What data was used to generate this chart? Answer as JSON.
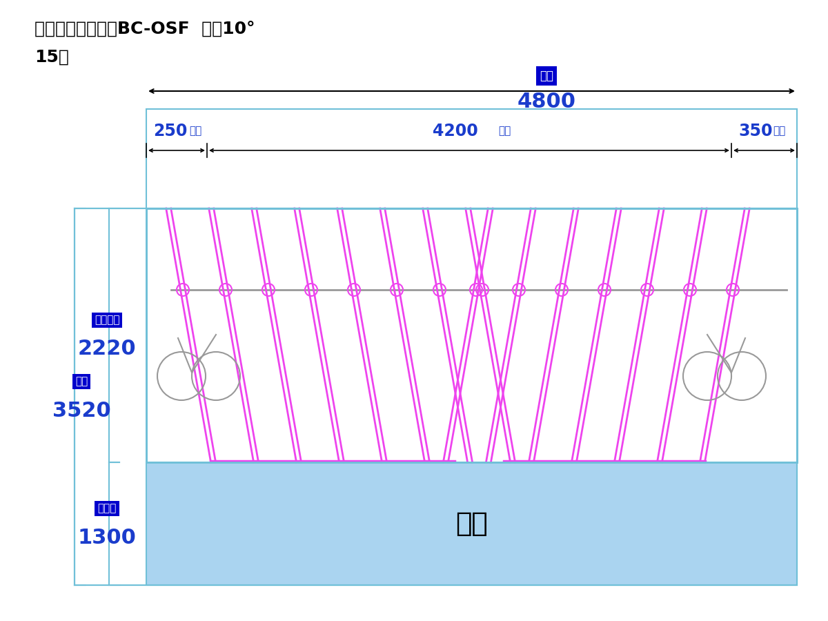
{
  "title_line1": "スライドラック：BC-OSF  標準10°",
  "title_line2": "15台",
  "bg_color": "#ffffff",
  "passage_color": "#AAD4F0",
  "passage_text": "通路",
  "dim_label_bg": "#0000CC",
  "dim_label_color": "#ffffff",
  "dim_value_color": "#1a3ccc",
  "magenta_color": "#EE44EE",
  "gray_color": "#888888",
  "border_color": "#70C0D8",
  "label_maguchi": "間口",
  "val_maguchi": "4800",
  "label_250": "250",
  "suffix_250": "以上",
  "label_4200": "4200",
  "suffix_4200": "以上",
  "label_350": "350",
  "suffix_350": "以上",
  "label_seihin_okuyuki": "製品奥行",
  "val_seihin_okuyuki": "2220",
  "label_okuyuki": "奥行",
  "val_okuyuki": "3520",
  "label_tsuro_haba": "通路幅",
  "val_tsuro_haba": "1300"
}
